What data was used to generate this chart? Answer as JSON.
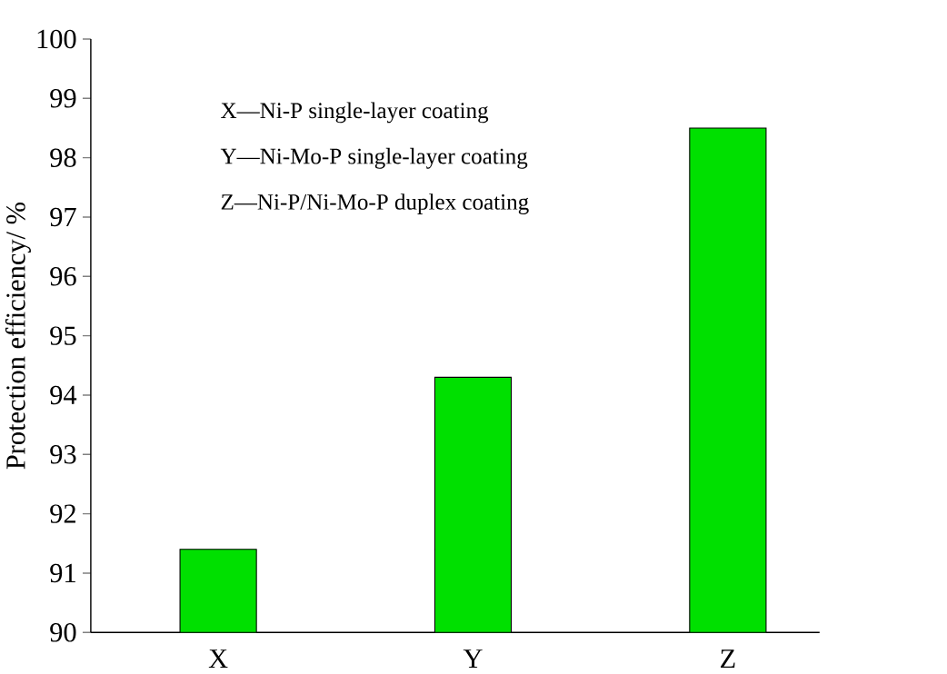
{
  "chart_data": {
    "type": "bar",
    "ylabel": "Protection efficiency/ %",
    "categories": [
      "X",
      "Y",
      "Z"
    ],
    "values": [
      91.4,
      94.3,
      98.5
    ],
    "color": "#00e000",
    "ylim": [
      90,
      100
    ],
    "yticks": [
      90,
      91,
      92,
      93,
      94,
      95,
      96,
      97,
      98,
      99,
      100
    ],
    "annotations": [
      "X—Ni-P single-layer coating",
      "Y—Ni-Mo-P single-layer coating",
      "Z—Ni-P/Ni-Mo-P duplex coating"
    ]
  }
}
